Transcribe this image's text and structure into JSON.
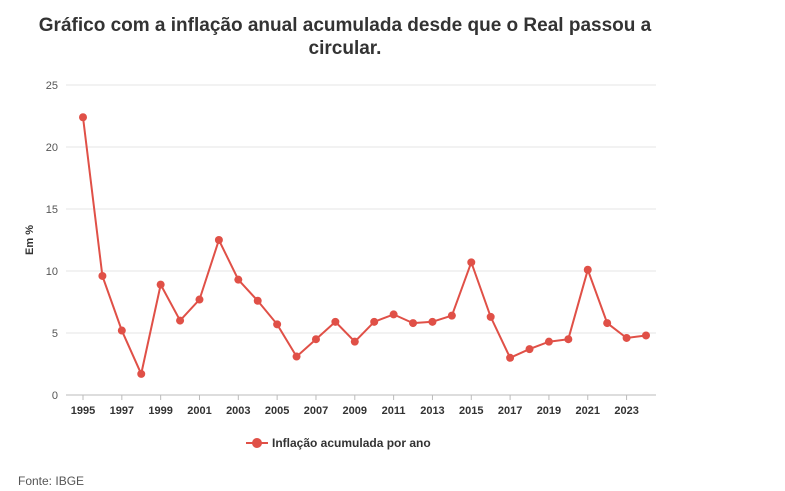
{
  "chart_data": {
    "type": "line",
    "title": "Gráfico com a inflação anual acumulada desde que o Real passou a circular.",
    "xlabel": "",
    "ylabel": "Em %",
    "ylim": [
      0,
      25
    ],
    "yticks": [
      0,
      5,
      10,
      15,
      20,
      25
    ],
    "xticks": [
      1995,
      1997,
      1999,
      2001,
      2003,
      2005,
      2007,
      2009,
      2011,
      2013,
      2015,
      2017,
      2019,
      2021,
      2023
    ],
    "x": [
      1995,
      1996,
      1997,
      1998,
      1999,
      2000,
      2001,
      2002,
      2003,
      2004,
      2005,
      2006,
      2007,
      2008,
      2009,
      2010,
      2011,
      2012,
      2013,
      2014,
      2015,
      2016,
      2017,
      2018,
      2019,
      2020,
      2021,
      2022,
      2023,
      2024
    ],
    "series": [
      {
        "name": "Inflação acumulada por ano",
        "color": "#e05047",
        "values": [
          22.4,
          9.6,
          5.2,
          1.7,
          8.9,
          6.0,
          7.7,
          12.5,
          9.3,
          7.6,
          5.7,
          3.1,
          4.5,
          5.9,
          4.3,
          5.9,
          6.5,
          5.8,
          5.9,
          6.4,
          10.7,
          6.3,
          3.0,
          3.7,
          4.3,
          4.5,
          10.1,
          5.8,
          4.6,
          4.8
        ]
      }
    ],
    "grid": true,
    "legend": "bottom-center"
  },
  "source": "Fonte: IBGE"
}
